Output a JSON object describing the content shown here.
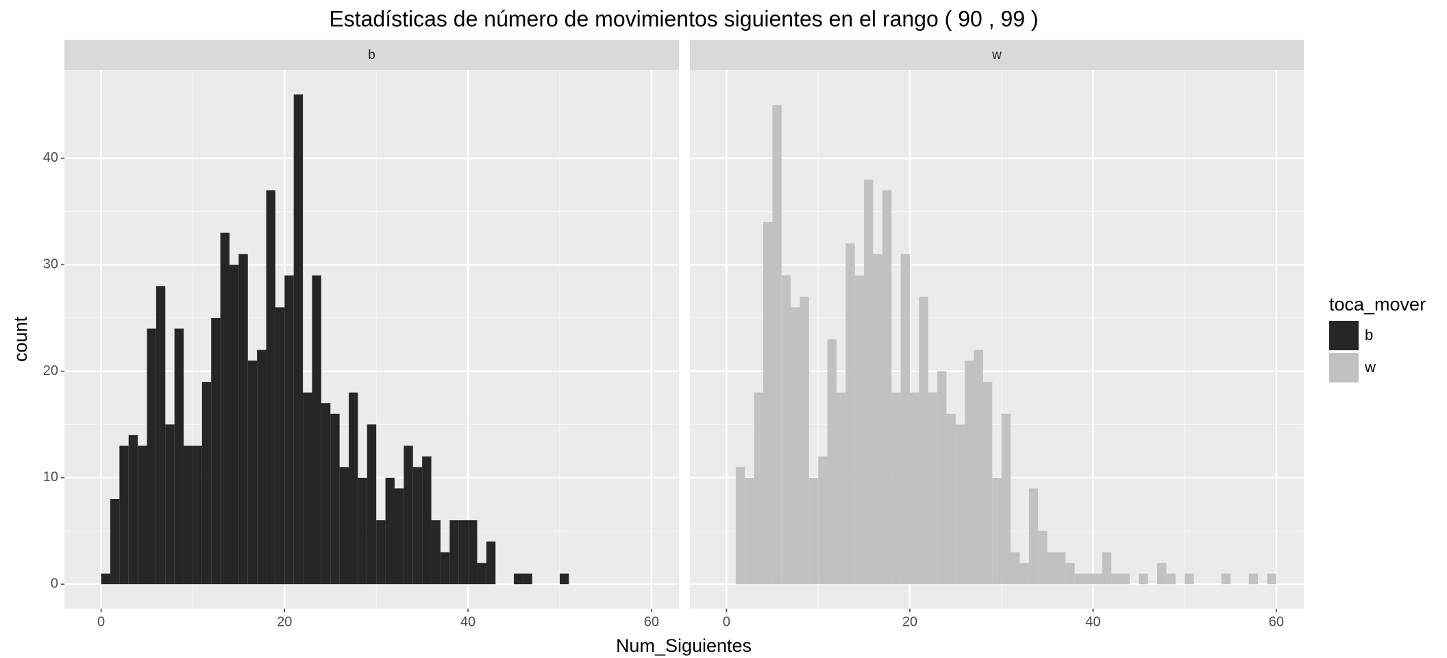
{
  "title": "Estadísticas de número de movimientos siguientes en el rango ( 90 , 99 )",
  "x_label": "Num_Siguientes",
  "y_label": "count",
  "legend": {
    "title": "toca_mover",
    "position": "right"
  },
  "chart_data": [
    {
      "type": "histogram",
      "name": "b",
      "color": "#262626",
      "bins": [
        0,
        1,
        2,
        3,
        4,
        5,
        6,
        7,
        8,
        9,
        10,
        11,
        12,
        13,
        14,
        15,
        16,
        17,
        18,
        19,
        20,
        21,
        22,
        23,
        24,
        25,
        26,
        27,
        28,
        29,
        30,
        31,
        32,
        33,
        34,
        35,
        36,
        37,
        38,
        39,
        40,
        41,
        42,
        43,
        44,
        45,
        46,
        47,
        48,
        49,
        50,
        51,
        52,
        53,
        54,
        55,
        56,
        57,
        58,
        59,
        60,
        61
      ],
      "counts": [
        1,
        8,
        13,
        14,
        13,
        24,
        28,
        15,
        24,
        13,
        13,
        19,
        25,
        33,
        30,
        31,
        21,
        22,
        37,
        26,
        29,
        46,
        18,
        29,
        17,
        16,
        11,
        18,
        10,
        15,
        6,
        10,
        9,
        13,
        11,
        12,
        6,
        3,
        6,
        6,
        6,
        2,
        4,
        0,
        0,
        1,
        1,
        0,
        0,
        0,
        1,
        0,
        0,
        0,
        0,
        0,
        0,
        0,
        0,
        0,
        0
      ],
      "xlim": [
        -4,
        63
      ],
      "ylim": [
        -2.3,
        48.3
      ],
      "xticks": [
        0,
        20,
        40,
        60
      ],
      "yticks": [
        0,
        10,
        20,
        30,
        40
      ],
      "grid": true
    },
    {
      "type": "histogram",
      "name": "w",
      "color": "#c1c1c1",
      "bins": [
        0,
        1,
        2,
        3,
        4,
        5,
        6,
        7,
        8,
        9,
        10,
        11,
        12,
        13,
        14,
        15,
        16,
        17,
        18,
        19,
        20,
        21,
        22,
        23,
        24,
        25,
        26,
        27,
        28,
        29,
        30,
        31,
        32,
        33,
        34,
        35,
        36,
        37,
        38,
        39,
        40,
        41,
        42,
        43,
        44,
        45,
        46,
        47,
        48,
        49,
        50,
        51,
        52,
        53,
        54,
        55,
        56,
        57,
        58,
        59,
        60,
        61
      ],
      "counts": [
        0,
        11,
        10,
        18,
        34,
        45,
        29,
        26,
        27,
        10,
        12,
        23,
        18,
        32,
        29,
        38,
        31,
        37,
        18,
        31,
        18,
        27,
        18,
        20,
        16,
        15,
        21,
        22,
        19,
        10,
        16,
        3,
        2,
        9,
        5,
        3,
        3,
        2,
        1,
        1,
        1,
        3,
        1,
        1,
        0,
        1,
        0,
        2,
        1,
        0,
        1,
        0,
        0,
        0,
        1,
        0,
        0,
        1,
        0,
        1,
        0
      ],
      "xlim": [
        -4,
        63
      ],
      "ylim": [
        -2.3,
        48.3
      ],
      "xticks": [
        0,
        20,
        40,
        60
      ],
      "yticks": [
        0,
        10,
        20,
        30,
        40
      ],
      "grid": true
    }
  ]
}
